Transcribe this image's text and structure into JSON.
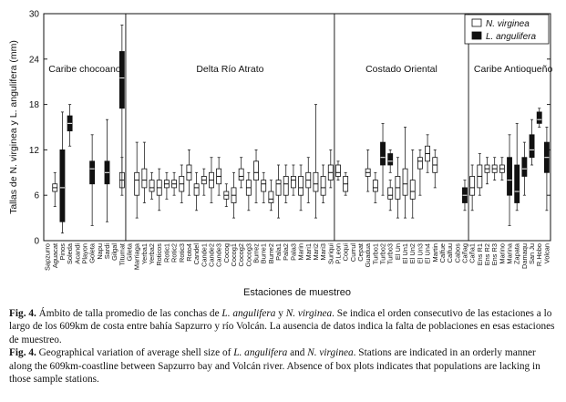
{
  "chart_data": {
    "type": "box",
    "ylabel": "Tallas de N. virginea y L. angulifera (mm)",
    "xlabel": "Estaciones de muestreo",
    "ylim": [
      0,
      30
    ],
    "yticks": [
      0,
      6,
      12,
      18,
      24,
      30
    ],
    "legend_position": "top-right",
    "series": [
      {
        "name": "N. virginea",
        "color": "#ffffff"
      },
      {
        "name": "L. angulifera",
        "color": "#111111"
      }
    ],
    "regions": [
      {
        "label": "Caribe chocoano",
        "start": 0,
        "end": 10
      },
      {
        "label": "Delta Río Atrato",
        "start": 11,
        "end": 38
      },
      {
        "label": "Costado Oriental",
        "start": 39,
        "end": 56
      },
      {
        "label": "Caribe Antioqueño",
        "start": 57,
        "end": 68
      }
    ],
    "stations": [
      "Sapzurro",
      "Aguacat",
      "Pinos",
      "Soleda",
      "Acandi",
      "Playon",
      "Goleta",
      "Napu",
      "Sardi",
      "Gilgal",
      "Titumat",
      "Gileta",
      "Marriaga",
      "Yerba1",
      "Yerba2",
      "Roticos",
      "Rotic1",
      "Rotic2",
      "Rotic3",
      "Roto4",
      "Candel",
      "Cande1",
      "Cande2",
      "Cande3",
      "Cocog",
      "Cocog1",
      "Cocog2",
      "Cocog3",
      "Burrez",
      "Burre1",
      "Burre2",
      "Pala1",
      "Pala2",
      "Pala3",
      "Marin",
      "Mari1",
      "Mari2",
      "Mari3",
      "Suriqui",
      "P.Leon",
      "Coqui",
      "Currul",
      "Cepat",
      "Guadua",
      "Turbo1",
      "Turbo2",
      "Turbo3",
      "El Un",
      "El Un1",
      "El Un2",
      "El Un3",
      "El Un4",
      "Martin",
      "Calfue",
      "Calfuu",
      "Cabos",
      "Cañag",
      "Caña1",
      "Ens R1",
      "Ens R2",
      "Ens R3",
      "Marino",
      "Marina",
      "Zapata",
      "Damaqu",
      "San Ju",
      "R.Hobo",
      "Volcan"
    ],
    "boxes": [
      {
        "station": 1,
        "series": "N. virginea",
        "min": 4.5,
        "q1": 6.5,
        "median": 7,
        "q3": 7.5,
        "max": 9
      },
      {
        "station": 2,
        "series": "L. angulifera",
        "min": 1,
        "q1": 2.5,
        "median": 7,
        "q3": 12,
        "max": 17
      },
      {
        "station": 3,
        "series": "L. angulifera",
        "min": 12.5,
        "q1": 14.5,
        "median": 15.5,
        "q3": 16.5,
        "max": 18
      },
      {
        "station": 6,
        "series": "L. angulifera",
        "min": 2,
        "q1": 7.5,
        "median": 9.5,
        "q3": 10.5,
        "max": 14
      },
      {
        "station": 8,
        "series": "L. angulifera",
        "min": 2.5,
        "q1": 7.5,
        "median": 9,
        "q3": 10.5,
        "max": 16
      },
      {
        "station": 10,
        "series": "N. virginea",
        "min": 6,
        "q1": 7,
        "median": 8,
        "q3": 9,
        "max": 11
      },
      {
        "station": 10,
        "series": "L. angulifera",
        "min": 7,
        "q1": 17.5,
        "median": 21.5,
        "q3": 25,
        "max": 28.5
      },
      {
        "station": 12,
        "series": "N. virginea",
        "min": 3,
        "q1": 6,
        "median": 8,
        "q3": 9,
        "max": 13
      },
      {
        "station": 13,
        "series": "N. virginea",
        "min": 5,
        "q1": 7,
        "median": 8,
        "q3": 9.5,
        "max": 13
      },
      {
        "station": 14,
        "series": "N. virginea",
        "min": 5.5,
        "q1": 6.5,
        "median": 7,
        "q3": 8,
        "max": 9
      },
      {
        "station": 15,
        "series": "N. virginea",
        "min": 4,
        "q1": 6,
        "median": 7,
        "q3": 8,
        "max": 9.5
      },
      {
        "station": 16,
        "series": "N. virginea",
        "min": 5.5,
        "q1": 7,
        "median": 7.5,
        "q3": 8,
        "max": 9
      },
      {
        "station": 17,
        "series": "N. virginea",
        "min": 6,
        "q1": 7,
        "median": 7.5,
        "q3": 8,
        "max": 9
      },
      {
        "station": 18,
        "series": "N. virginea",
        "min": 5,
        "q1": 6.5,
        "median": 7.5,
        "q3": 8.5,
        "max": 10
      },
      {
        "station": 19,
        "series": "N. virginea",
        "min": 6,
        "q1": 8,
        "median": 9,
        "q3": 10,
        "max": 12
      },
      {
        "station": 20,
        "series": "N. virginea",
        "min": 4,
        "q1": 6,
        "median": 7,
        "q3": 7.5,
        "max": 9
      },
      {
        "station": 21,
        "series": "N. virginea",
        "min": 6,
        "q1": 7.5,
        "median": 8,
        "q3": 8.5,
        "max": 9.5
      },
      {
        "station": 22,
        "series": "N. virginea",
        "min": 5,
        "q1": 7,
        "median": 8,
        "q3": 9,
        "max": 11
      },
      {
        "station": 23,
        "series": "N. virginea",
        "min": 6,
        "q1": 7.5,
        "median": 8.5,
        "q3": 9.5,
        "max": 11
      },
      {
        "station": 24,
        "series": "N. virginea",
        "min": 4.5,
        "q1": 5.5,
        "median": 6,
        "q3": 6.5,
        "max": 7.5
      },
      {
        "station": 25,
        "series": "N. virginea",
        "min": 3,
        "q1": 5,
        "median": 6,
        "q3": 7,
        "max": 9
      },
      {
        "station": 26,
        "series": "N. virginea",
        "min": 7,
        "q1": 8,
        "median": 8.5,
        "q3": 9.5,
        "max": 11
      },
      {
        "station": 27,
        "series": "N. virginea",
        "min": 4,
        "q1": 6,
        "median": 7,
        "q3": 8,
        "max": 9
      },
      {
        "station": 28,
        "series": "N. virginea",
        "min": 5,
        "q1": 8,
        "median": 9,
        "q3": 10.5,
        "max": 12
      },
      {
        "station": 29,
        "series": "N. virginea",
        "min": 5,
        "q1": 6.5,
        "median": 7.5,
        "q3": 8,
        "max": 9
      },
      {
        "station": 30,
        "series": "N. virginea",
        "min": 4,
        "q1": 5,
        "median": 5.5,
        "q3": 6.5,
        "max": 8
      },
      {
        "station": 31,
        "series": "N. virginea",
        "min": 3,
        "q1": 6,
        "median": 7.5,
        "q3": 8,
        "max": 10
      },
      {
        "station": 32,
        "series": "N. virginea",
        "min": 5,
        "q1": 6,
        "median": 7.5,
        "q3": 8.5,
        "max": 10
      },
      {
        "station": 33,
        "series": "N. virginea",
        "min": 6,
        "q1": 7,
        "median": 8,
        "q3": 8.5,
        "max": 10
      },
      {
        "station": 34,
        "series": "N. virginea",
        "min": 4,
        "q1": 6,
        "median": 7,
        "q3": 8.5,
        "max": 10
      },
      {
        "station": 35,
        "series": "N. virginea",
        "min": 5,
        "q1": 7,
        "median": 8,
        "q3": 9,
        "max": 11
      },
      {
        "station": 36,
        "series": "N. virginea",
        "min": 3,
        "q1": 6.5,
        "median": 7.5,
        "q3": 9,
        "max": 18
      },
      {
        "station": 37,
        "series": "N. virginea",
        "min": 5,
        "q1": 6,
        "median": 7,
        "q3": 8.5,
        "max": 10
      },
      {
        "station": 38,
        "series": "N. virginea",
        "min": 7,
        "q1": 8,
        "median": 9,
        "q3": 10,
        "max": 12
      },
      {
        "station": 39,
        "series": "N. virginea",
        "min": 8,
        "q1": 8.5,
        "median": 9,
        "q3": 10,
        "max": 10.5
      },
      {
        "station": 40,
        "series": "N. virginea",
        "min": 6,
        "q1": 6.5,
        "median": 7.5,
        "q3": 8.5,
        "max": 9
      },
      {
        "station": 43,
        "series": "N. virginea",
        "min": 6.5,
        "q1": 8.5,
        "median": 9,
        "q3": 9.5,
        "max": 12
      },
      {
        "station": 44,
        "series": "N. virginea",
        "min": 5,
        "q1": 6.5,
        "median": 7,
        "q3": 8,
        "max": 9
      },
      {
        "station": 45,
        "series": "L. angulifera",
        "min": 6,
        "q1": 10,
        "median": 11,
        "q3": 13,
        "max": 15.5
      },
      {
        "station": 46,
        "series": "N. virginea",
        "min": 4,
        "q1": 5.5,
        "median": 6,
        "q3": 7,
        "max": 8
      },
      {
        "station": 46,
        "series": "L. angulifera",
        "min": 9,
        "q1": 10,
        "median": 10.5,
        "q3": 11.5,
        "max": 12
      },
      {
        "station": 47,
        "series": "N. virginea",
        "min": 3,
        "q1": 5.5,
        "median": 7,
        "q3": 8.5,
        "max": 11
      },
      {
        "station": 48,
        "series": "N. virginea",
        "min": 3,
        "q1": 6,
        "median": 7.5,
        "q3": 9.5,
        "max": 15
      },
      {
        "station": 49,
        "series": "N. virginea",
        "min": 3,
        "q1": 5.5,
        "median": 6.5,
        "q3": 8,
        "max": 12
      },
      {
        "station": 50,
        "series": "N. virginea",
        "min": 6,
        "q1": 9.5,
        "median": 10.5,
        "q3": 11,
        "max": 12
      },
      {
        "station": 51,
        "series": "N. virginea",
        "min": 9,
        "q1": 10.5,
        "median": 11.5,
        "q3": 12.5,
        "max": 14
      },
      {
        "station": 52,
        "series": "N. virginea",
        "min": 7,
        "q1": 9,
        "median": 10,
        "q3": 11,
        "max": 12
      },
      {
        "station": 56,
        "series": "L. angulifera",
        "min": 4,
        "q1": 5,
        "median": 6,
        "q3": 7,
        "max": 8
      },
      {
        "station": 57,
        "series": "N. virginea",
        "min": 4,
        "q1": 6,
        "median": 7,
        "q3": 8.5,
        "max": 10
      },
      {
        "station": 58,
        "series": "N. virginea",
        "min": 6,
        "q1": 7,
        "median": 8.5,
        "q3": 10,
        "max": 11.5
      },
      {
        "station": 59,
        "series": "N. virginea",
        "min": 7.5,
        "q1": 9,
        "median": 9.5,
        "q3": 10,
        "max": 11
      },
      {
        "station": 60,
        "series": "N. virginea",
        "min": 8,
        "q1": 9,
        "median": 9.5,
        "q3": 10,
        "max": 11
      },
      {
        "station": 61,
        "series": "N. virginea",
        "min": 8,
        "q1": 9,
        "median": 9.5,
        "q3": 10,
        "max": 11
      },
      {
        "station": 62,
        "series": "L. angulifera",
        "min": 2,
        "q1": 6,
        "median": 8,
        "q3": 11,
        "max": 14
      },
      {
        "station": 63,
        "series": "L. angulifera",
        "min": 4,
        "q1": 5,
        "median": 6.5,
        "q3": 10,
        "max": 15.5
      },
      {
        "station": 64,
        "series": "L. angulifera",
        "min": 6,
        "q1": 8.5,
        "median": 9.5,
        "q3": 11,
        "max": 13
      },
      {
        "station": 65,
        "series": "L. angulifera",
        "min": 10,
        "q1": 11,
        "median": 12,
        "q3": 14,
        "max": 16
      },
      {
        "station": 66,
        "series": "L. angulifera",
        "min": 15,
        "q1": 15.5,
        "median": 16,
        "q3": 17,
        "max": 17.5
      },
      {
        "station": 67,
        "series": "L. angulifera",
        "min": 4,
        "q1": 9,
        "median": 11,
        "q3": 13,
        "max": 15
      }
    ]
  },
  "caption": {
    "es_label": "Fig. 4.",
    "es_1": " Ámbito de talla promedio de las conchas de ",
    "es_sp1": "L. angulifera",
    "es_2": " y ",
    "es_sp2": "N. virginea",
    "es_3": ". Se indica el orden consecutivo de las estaciones a lo largo de los 609km de costa entre bahía Sapzurro y río Volcán. La ausencia de datos indica la falta de poblaciones en esas estaciones de muestreo.",
    "en_label": "Fig. 4.",
    "en_1": " Geographical variation of average shell size of ",
    "en_sp1": "L. angulifera",
    "en_2": " and ",
    "en_sp2": "N. virginea",
    "en_3": ". Stations are indicated in an orderly manner along the 609km-coastline between Sapzurro bay and Volcán river. Absence of box plots indicates that populations are lacking in those sample stations."
  }
}
